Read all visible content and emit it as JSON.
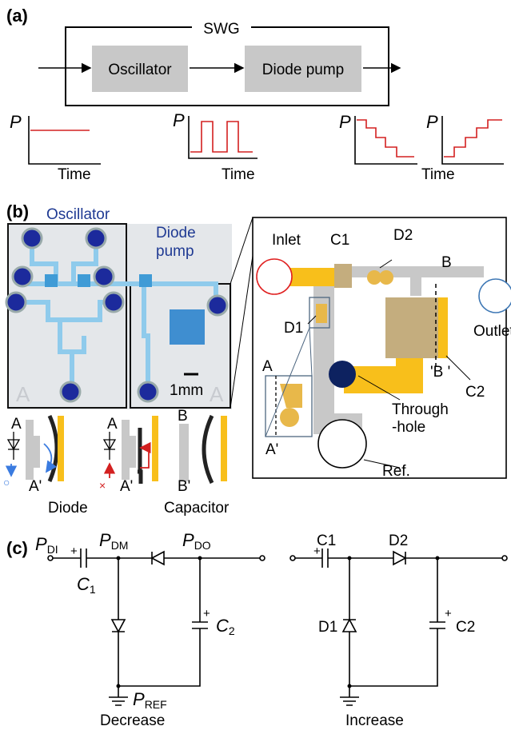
{
  "panel_a": {
    "label": "(a)",
    "block_title": "SWG",
    "blocks": [
      "Oscillator",
      "Diode pump"
    ],
    "y_axis_labels": [
      "P",
      "P",
      "P",
      "P"
    ],
    "x_axis_labels": [
      "Time",
      "Time",
      "Time"
    ]
  },
  "panel_b": {
    "label": "(b)",
    "photo": {
      "oscillator": "Oscillator",
      "diode_pump": [
        "Diode",
        "pump"
      ],
      "scale_bar": "1mm",
      "watermarks": [
        "A",
        "A"
      ]
    },
    "layout": {
      "inlet": "Inlet",
      "c1": "C1",
      "d2": "D2",
      "b": "B",
      "outlet": "Outlet",
      "d1": "D1",
      "a": "A",
      "a_prime": "A'",
      "b_prime": "'B '",
      "c2": "C2",
      "through_hole": [
        "Through",
        "-hole"
      ],
      "ref": "Ref."
    },
    "cross_sections": {
      "diode_labels": [
        [
          "A",
          "A'"
        ],
        [
          "A",
          "A'"
        ]
      ],
      "capacitor_labels": [
        "B",
        "B'"
      ],
      "forward": "○",
      "reverse": "×",
      "captions": [
        "Diode",
        "Capacitor"
      ]
    }
  },
  "panel_c": {
    "label": "(c)",
    "decrease": {
      "p_in": {
        "symbol": "P",
        "subscript": "DI"
      },
      "p_mid": {
        "symbol": "P",
        "subscript": "DM"
      },
      "p_out": {
        "symbol": "P",
        "subscript": "DO"
      },
      "p_ref": {
        "symbol": "P",
        "subscript": "REF"
      },
      "c1": {
        "symbol": "C",
        "subscript": "1"
      },
      "c2": {
        "symbol": "C",
        "subscript": "2"
      },
      "polarity": [
        "+",
        "+"
      ],
      "caption": "Decrease"
    },
    "increase": {
      "c1": "C1",
      "d2": "D2",
      "d1": "D1",
      "c2": "C2",
      "polarity": [
        "+",
        "+"
      ],
      "caption": "Increase"
    }
  }
}
